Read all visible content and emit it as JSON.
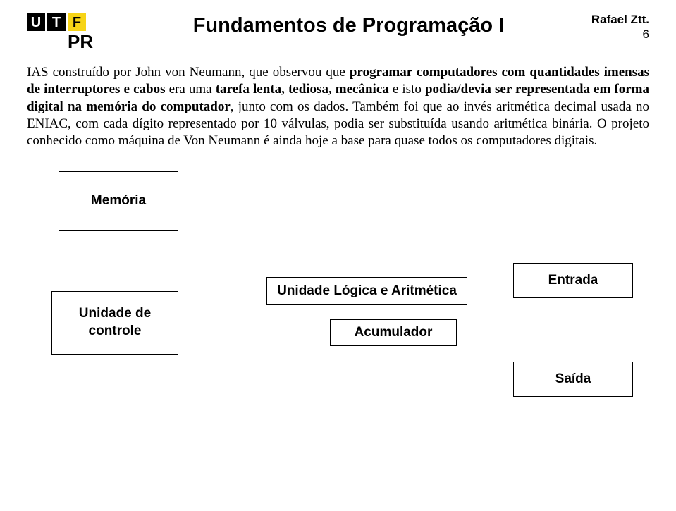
{
  "header": {
    "logo": {
      "name": "utfpr-logo",
      "text_top_u": "U",
      "text_top_t": "T",
      "text_top_f": "F",
      "text_bottom": "PR",
      "color_black": "#000000",
      "color_yellow": "#f7d417",
      "color_white": "#ffffff"
    },
    "title": "Fundamentos de Programação I",
    "author": "Rafael Ztt.",
    "page_number": "6"
  },
  "body_paragraph": {
    "segments": [
      {
        "text": "IAS construído por John von Neumann, que observou que ",
        "bold": false
      },
      {
        "text": "programar computadores com quantidades imensas de interruptores e cabos",
        "bold": true
      },
      {
        "text": " era uma ",
        "bold": false
      },
      {
        "text": "tarefa lenta, tediosa, mecânica",
        "bold": true
      },
      {
        "text": " e isto ",
        "bold": false
      },
      {
        "text": "podia/devia ser representada em forma digital na memória do computador",
        "bold": true
      },
      {
        "text": ", junto com os dados. Também foi que ao invés aritmética decimal usada no ENIAC, com cada dígito representado por 10 válvulas, podia ser substituída usando aritmética binária. O projeto conhecido como máquina de Von Neumann é ainda hoje a base para quase todos os computadores digitais.",
        "bold": false
      }
    ]
  },
  "diagram": {
    "boxes": {
      "memoria": {
        "label": "Memória"
      },
      "unidade_controle": {
        "label": "Unidade de\ncontrole"
      },
      "ula": {
        "label": "Unidade Lógica e Aritmética"
      },
      "acumulador": {
        "label": "Acumulador"
      },
      "entrada": {
        "label": "Entrada"
      },
      "saida": {
        "label": "Saída"
      }
    },
    "styling": {
      "box_border_color": "#000000",
      "box_border_width": 1.5,
      "box_background": "#ffffff",
      "font_weight": "bold",
      "font_size": 19,
      "font_color": "#000000"
    }
  },
  "page_styling": {
    "background_color": "#ffffff",
    "body_font": "Georgia, Times New Roman, serif",
    "header_font": "Arial, Helvetica, sans-serif",
    "title_font_size": 29,
    "body_font_size": 19
  }
}
